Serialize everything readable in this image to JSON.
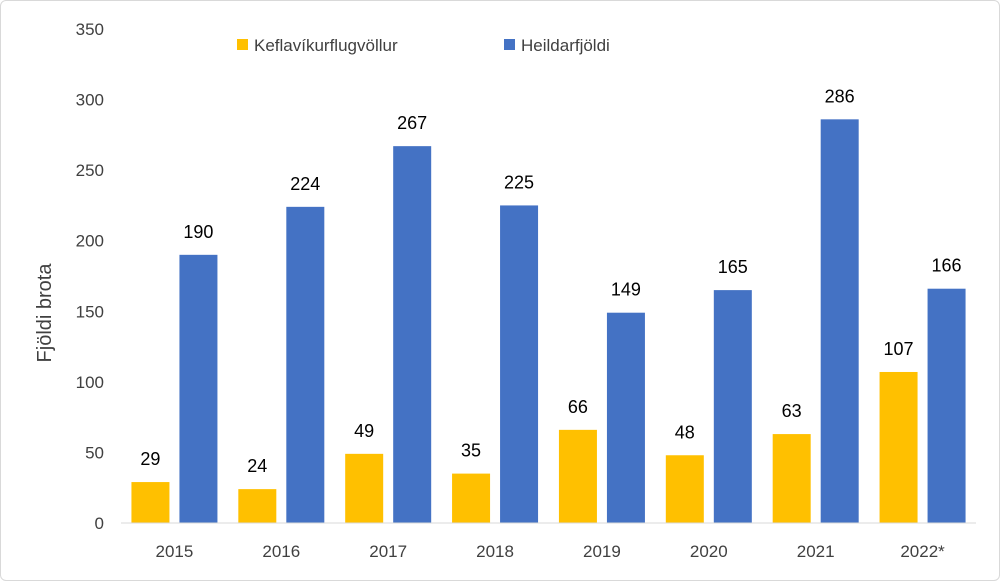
{
  "chart_data": {
    "type": "bar",
    "title": "",
    "xlabel": "",
    "ylabel": "Fjöldi brota",
    "ylim": [
      0,
      350
    ],
    "yticks": [
      0,
      50,
      100,
      150,
      200,
      250,
      300,
      350
    ],
    "grid": false,
    "legend_position": "top",
    "categories": [
      "2015",
      "2016",
      "2017",
      "2018",
      "2019",
      "2020",
      "2021",
      "2022*"
    ],
    "series": [
      {
        "name": "Keflavíkurflugvöllur",
        "color": "#FFC000",
        "values": [
          29,
          24,
          49,
          35,
          66,
          48,
          63,
          107
        ]
      },
      {
        "name": "Heildarfjöldi",
        "color": "#4472C4",
        "values": [
          190,
          224,
          267,
          225,
          149,
          165,
          286,
          166
        ]
      }
    ],
    "axis_color": "#d9d9d9",
    "text_color": "#404040"
  }
}
